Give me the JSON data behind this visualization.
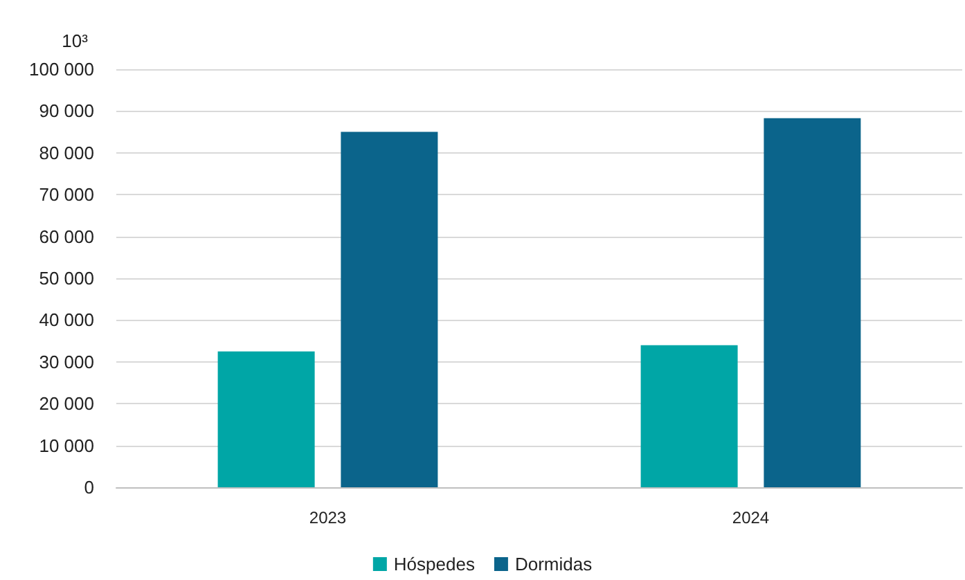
{
  "chart_data": {
    "type": "bar",
    "ylabel": "10³",
    "categories": [
      "2023",
      "2024"
    ],
    "series": [
      {
        "name": "Hóspedes",
        "color": "#00a6a6",
        "values": [
          32500,
          34000
        ]
      },
      {
        "name": "Dormidas",
        "color": "#0b648b",
        "values": [
          85000,
          88300
        ]
      }
    ],
    "ylim": [
      0,
      100000
    ],
    "yticks": [
      {
        "value": 0,
        "label": "0"
      },
      {
        "value": 10000,
        "label": "10 000"
      },
      {
        "value": 20000,
        "label": "20 000"
      },
      {
        "value": 30000,
        "label": "30 000"
      },
      {
        "value": 40000,
        "label": "40 000"
      },
      {
        "value": 50000,
        "label": "50 000"
      },
      {
        "value": 60000,
        "label": "60 000"
      },
      {
        "value": 70000,
        "label": "70 000"
      },
      {
        "value": 80000,
        "label": "80 000"
      },
      {
        "value": 90000,
        "label": "90 000"
      },
      {
        "value": 100000,
        "label": "100 000"
      }
    ],
    "grid": "y",
    "legend": "bottom"
  }
}
